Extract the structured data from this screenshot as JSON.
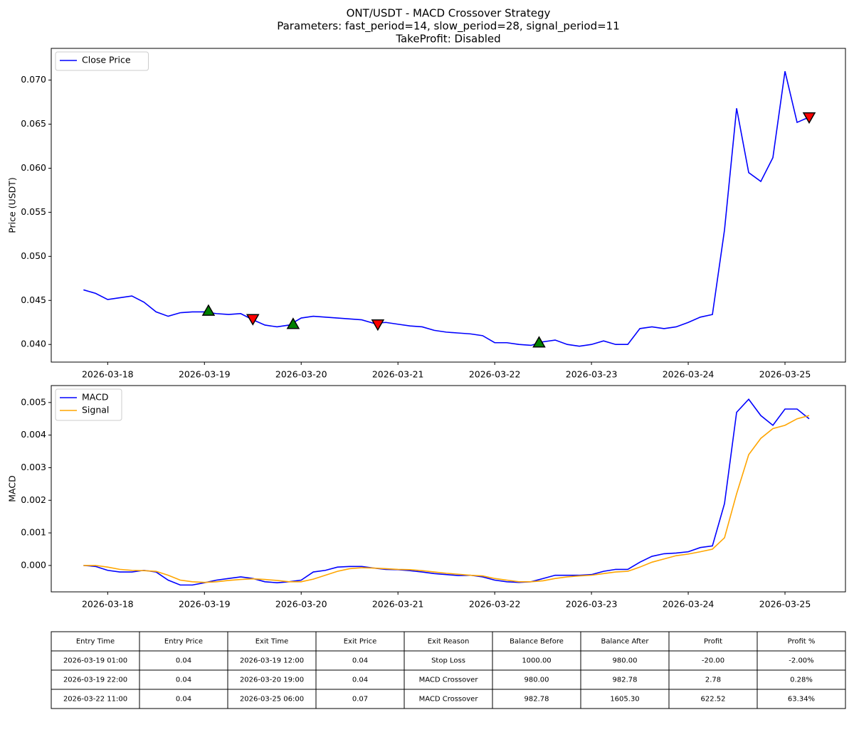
{
  "title": [
    "ONT/USDT - MACD Crossover Strategy",
    "Parameters: fast_period=14, slow_period=28, signal_period=11",
    "TakeProfit: Disabled"
  ],
  "chart_data": [
    {
      "type": "line",
      "ylabel": "Price (USDT)",
      "legend": "upper left",
      "x": [
        "2026-03-17 18:00",
        "2026-03-17 21:00",
        "2026-03-18 00:00",
        "2026-03-18 03:00",
        "2026-03-18 06:00",
        "2026-03-18 09:00",
        "2026-03-18 12:00",
        "2026-03-18 15:00",
        "2026-03-18 18:00",
        "2026-03-18 21:00",
        "2026-03-19 00:00",
        "2026-03-19 03:00",
        "2026-03-19 06:00",
        "2026-03-19 09:00",
        "2026-03-19 12:00",
        "2026-03-19 15:00",
        "2026-03-19 18:00",
        "2026-03-19 21:00",
        "2026-03-20 00:00",
        "2026-03-20 03:00",
        "2026-03-20 06:00",
        "2026-03-20 09:00",
        "2026-03-20 12:00",
        "2026-03-20 15:00",
        "2026-03-20 18:00",
        "2026-03-20 21:00",
        "2026-03-21 00:00",
        "2026-03-21 03:00",
        "2026-03-21 06:00",
        "2026-03-21 09:00",
        "2026-03-21 12:00",
        "2026-03-21 15:00",
        "2026-03-21 18:00",
        "2026-03-21 21:00",
        "2026-03-22 00:00",
        "2026-03-22 03:00",
        "2026-03-22 06:00",
        "2026-03-22 09:00",
        "2026-03-22 12:00",
        "2026-03-22 15:00",
        "2026-03-22 18:00",
        "2026-03-22 21:00",
        "2026-03-23 00:00",
        "2026-03-23 03:00",
        "2026-03-23 06:00",
        "2026-03-23 09:00",
        "2026-03-23 12:00",
        "2026-03-23 15:00",
        "2026-03-23 18:00",
        "2026-03-23 21:00",
        "2026-03-24 00:00",
        "2026-03-24 03:00",
        "2026-03-24 06:00",
        "2026-03-24 09:00",
        "2026-03-24 12:00",
        "2026-03-24 15:00",
        "2026-03-24 18:00",
        "2026-03-24 21:00",
        "2026-03-25 00:00",
        "2026-03-25 03:00",
        "2026-03-25 06:00"
      ],
      "series": [
        {
          "name": "Close Price",
          "color": "#0000ff",
          "values": [
            0.0462,
            0.0458,
            0.0451,
            0.0453,
            0.0455,
            0.0448,
            0.0437,
            0.0432,
            0.0436,
            0.0437,
            0.0437,
            0.0435,
            0.0434,
            0.0435,
            0.0428,
            0.0422,
            0.042,
            0.0422,
            0.043,
            0.0432,
            0.0431,
            0.043,
            0.0429,
            0.0428,
            0.0424,
            0.0425,
            0.0423,
            0.0421,
            0.042,
            0.0416,
            0.0414,
            0.0413,
            0.0412,
            0.041,
            0.0402,
            0.0402,
            0.04,
            0.0399,
            0.0403,
            0.0405,
            0.04,
            0.0398,
            0.04,
            0.0404,
            0.04,
            0.04,
            0.0418,
            0.042,
            0.0418,
            0.042,
            0.0425,
            0.0431,
            0.0434,
            0.053,
            0.0668,
            0.0595,
            0.0585,
            0.0612,
            0.071,
            0.0652,
            0.0658
          ]
        }
      ],
      "buy_markers": {
        "color": "#008000",
        "x": [
          "2026-03-19 01:00",
          "2026-03-19 22:00",
          "2026-03-22 11:00"
        ],
        "values": [
          0.0438,
          0.0423,
          0.0402
        ]
      },
      "sell_markers": {
        "color": "#ff0000",
        "x": [
          "2026-03-19 12:00",
          "2026-03-20 19:00",
          "2026-03-25 06:00"
        ],
        "values": [
          0.0429,
          0.0423,
          0.0658
        ]
      },
      "xlim": [
        "2026-03-17 10:00",
        "2026-03-25 15:00"
      ],
      "xticks": [
        "2026-03-18",
        "2026-03-19",
        "2026-03-20",
        "2026-03-21",
        "2026-03-22",
        "2026-03-23",
        "2026-03-24",
        "2026-03-25"
      ],
      "ylim": [
        0.038,
        0.0736
      ],
      "yticks": [
        {
          "value": 0.04,
          "label": "0.040"
        },
        0.045,
        {
          "value": 0.05,
          "label": "0.050"
        },
        0.055,
        {
          "value": 0.06,
          "label": "0.060"
        },
        0.065,
        {
          "value": 0.07,
          "label": "0.070"
        }
      ]
    },
    {
      "type": "line",
      "ylabel": "MACD",
      "legend": "upper left",
      "x": [
        "2026-03-17 18:00",
        "2026-03-17 21:00",
        "2026-03-18 00:00",
        "2026-03-18 03:00",
        "2026-03-18 06:00",
        "2026-03-18 09:00",
        "2026-03-18 12:00",
        "2026-03-18 15:00",
        "2026-03-18 18:00",
        "2026-03-18 21:00",
        "2026-03-19 00:00",
        "2026-03-19 03:00",
        "2026-03-19 06:00",
        "2026-03-19 09:00",
        "2026-03-19 12:00",
        "2026-03-19 15:00",
        "2026-03-19 18:00",
        "2026-03-19 21:00",
        "2026-03-20 00:00",
        "2026-03-20 03:00",
        "2026-03-20 06:00",
        "2026-03-20 09:00",
        "2026-03-20 12:00",
        "2026-03-20 15:00",
        "2026-03-20 18:00",
        "2026-03-20 21:00",
        "2026-03-21 00:00",
        "2026-03-21 03:00",
        "2026-03-21 06:00",
        "2026-03-21 09:00",
        "2026-03-21 12:00",
        "2026-03-21 15:00",
        "2026-03-21 18:00",
        "2026-03-21 21:00",
        "2026-03-22 00:00",
        "2026-03-22 03:00",
        "2026-03-22 06:00",
        "2026-03-22 09:00",
        "2026-03-22 12:00",
        "2026-03-22 15:00",
        "2026-03-22 18:00",
        "2026-03-22 21:00",
        "2026-03-23 00:00",
        "2026-03-23 03:00",
        "2026-03-23 06:00",
        "2026-03-23 09:00",
        "2026-03-23 12:00",
        "2026-03-23 15:00",
        "2026-03-23 18:00",
        "2026-03-23 21:00",
        "2026-03-24 00:00",
        "2026-03-24 03:00",
        "2026-03-24 06:00",
        "2026-03-24 09:00",
        "2026-03-24 12:00",
        "2026-03-24 15:00",
        "2026-03-24 18:00",
        "2026-03-24 21:00",
        "2026-03-25 00:00",
        "2026-03-25 03:00",
        "2026-03-25 06:00"
      ],
      "series": [
        {
          "name": "MACD",
          "color": "#0000ff",
          "values": [
            0,
            -3e-05,
            -0.00015,
            -0.0002,
            -0.0002,
            -0.00015,
            -0.0002,
            -0.00045,
            -0.0006,
            -0.0006,
            -0.00053,
            -0.00045,
            -0.0004,
            -0.00035,
            -0.0004,
            -0.0005,
            -0.00053,
            -0.0005,
            -0.00045,
            -0.0002,
            -0.00015,
            -5e-05,
            -3e-05,
            -3e-05,
            -8e-05,
            -0.00012,
            -0.00013,
            -0.00016,
            -0.0002,
            -0.00025,
            -0.00028,
            -0.00031,
            -0.0003,
            -0.00035,
            -0.00045,
            -0.0005,
            -0.00052,
            -0.0005,
            -0.0004,
            -0.0003,
            -0.0003,
            -0.0003,
            -0.00028,
            -0.00018,
            -0.00012,
            -0.00012,
            0.0001,
            0.00028,
            0.00036,
            0.00038,
            0.00042,
            0.00055,
            0.0006,
            0.0019,
            0.0047,
            0.0051,
            0.0046,
            0.0043,
            0.0048,
            0.0048,
            0.0045
          ]
        },
        {
          "name": "Signal",
          "color": "#ffa500",
          "values": [
            0,
            0,
            -5e-05,
            -0.00012,
            -0.00015,
            -0.00016,
            -0.00018,
            -0.0003,
            -0.00045,
            -0.0005,
            -0.00052,
            -0.0005,
            -0.00046,
            -0.00043,
            -0.00041,
            -0.00043,
            -0.00046,
            -0.0005,
            -0.0005,
            -0.00042,
            -0.0003,
            -0.00018,
            -0.0001,
            -7e-05,
            -8e-05,
            -0.0001,
            -0.00012,
            -0.00013,
            -0.00016,
            -0.0002,
            -0.00024,
            -0.00027,
            -0.0003,
            -0.00032,
            -0.0004,
            -0.00045,
            -0.0005,
            -0.0005,
            -0.00047,
            -0.0004,
            -0.00035,
            -0.00032,
            -0.0003,
            -0.00025,
            -0.0002,
            -0.00018,
            -5e-05,
            0.0001,
            0.0002,
            0.0003,
            0.00035,
            0.00042,
            0.0005,
            0.00085,
            0.0022,
            0.0034,
            0.0039,
            0.0042,
            0.0043,
            0.0045,
            0.0046
          ]
        }
      ],
      "xlim": [
        "2026-03-17 10:00",
        "2026-03-25 15:00"
      ],
      "xticks": [
        "2026-03-18",
        "2026-03-19",
        "2026-03-20",
        "2026-03-21",
        "2026-03-22",
        "2026-03-23",
        "2026-03-24",
        "2026-03-25"
      ],
      "ylim": [
        -0.00081,
        0.00552
      ],
      "yticks": [
        {
          "value": 0,
          "label": "0.000"
        },
        0.001,
        0.002,
        0.003,
        0.004,
        0.005
      ]
    }
  ],
  "table": {
    "header": [
      "Entry Time",
      "Entry Price",
      "Exit Time",
      "Exit Price",
      "Exit Reason",
      "Balance Before",
      "Balance After",
      "Profit",
      "Profit %"
    ],
    "rows": [
      [
        "2026-03-19 01:00",
        "0.04",
        "2026-03-19 12:00",
        "0.04",
        "Stop Loss",
        "1000.00",
        "980.00",
        "-20.00",
        "-2.00%"
      ],
      [
        "2026-03-19 22:00",
        "0.04",
        "2026-03-20 19:00",
        "0.04",
        "MACD Crossover",
        "980.00",
        "982.78",
        "2.78",
        "0.28%"
      ],
      [
        "2026-03-22 11:00",
        "0.04",
        "2026-03-25 06:00",
        "0.07",
        "MACD Crossover",
        "982.78",
        "1605.30",
        "622.52",
        "63.34%"
      ]
    ]
  }
}
